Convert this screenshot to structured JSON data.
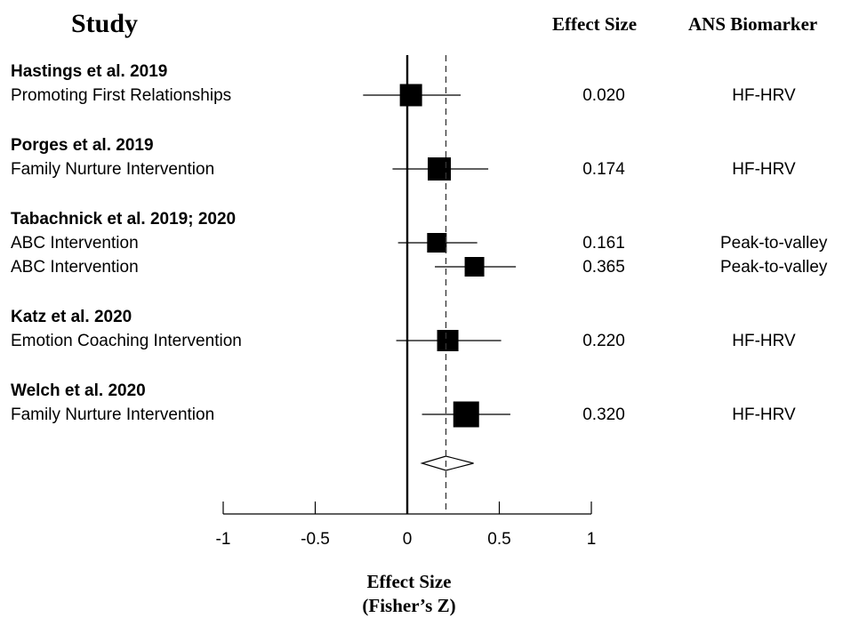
{
  "chart_data": {
    "type": "forest",
    "headers": {
      "study": "Study",
      "effect": "Effect Size",
      "biomarker": "ANS Biomarker"
    },
    "xlabel_line1": "Effect Size",
    "xlabel_line2": "(Fisher’s Z)",
    "xlim": [
      -1,
      1
    ],
    "ticks": [
      {
        "value": -1,
        "label": "-1"
      },
      {
        "value": -0.5,
        "label": "-0.5"
      },
      {
        "value": 0,
        "label": "0"
      },
      {
        "value": 0.5,
        "label": "0.5"
      },
      {
        "value": 1,
        "label": "1"
      }
    ],
    "groups": [
      {
        "study": "Hastings et al. 2019",
        "rows": [
          {
            "label": "Promoting First Relationships",
            "effect": 0.02,
            "effect_label": "0.020",
            "ci": [
              -0.24,
              0.29
            ],
            "weight": 0.55,
            "biomarker": "HF-HRV"
          }
        ]
      },
      {
        "study": "Porges et al. 2019",
        "rows": [
          {
            "label": "Family Nurture Intervention",
            "effect": 0.174,
            "effect_label": "0.174",
            "ci": [
              -0.08,
              0.44
            ],
            "weight": 0.6,
            "biomarker": "HF-HRV"
          }
        ]
      },
      {
        "study": "Tabachnick et al. 2019; 2020",
        "rows": [
          {
            "label": "ABC Intervention",
            "effect": 0.161,
            "effect_label": "0.161",
            "ci": [
              -0.05,
              0.38
            ],
            "weight": 0.4,
            "biomarker": "Peak-to-valley"
          },
          {
            "label": "ABC Intervention",
            "effect": 0.365,
            "effect_label": "0.365",
            "ci": [
              0.15,
              0.59
            ],
            "weight": 0.4,
            "biomarker": "Peak-to-valley"
          }
        ]
      },
      {
        "study": "Katz et al. 2020",
        "rows": [
          {
            "label": "Emotion Coaching Intervention",
            "effect": 0.22,
            "effect_label": "0.220",
            "ci": [
              -0.06,
              0.51
            ],
            "weight": 0.5,
            "biomarker": "HF-HRV"
          }
        ]
      },
      {
        "study": "Welch et al. 2020",
        "rows": [
          {
            "label": "Family Nurture Intervention",
            "effect": 0.32,
            "effect_label": "0.320",
            "ci": [
              0.08,
              0.56
            ],
            "weight": 0.75,
            "biomarker": "HF-HRV"
          }
        ]
      }
    ],
    "summary": {
      "estimate": 0.21,
      "ci": [
        0.08,
        0.36
      ]
    },
    "reference_line": 0,
    "summary_line": 0.21
  }
}
